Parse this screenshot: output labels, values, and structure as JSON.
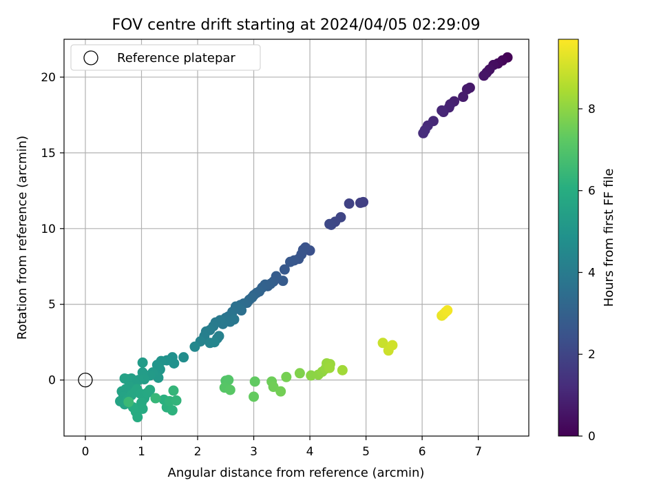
{
  "chart_data": {
    "type": "scatter",
    "title": "FOV centre drift starting at 2024/04/05 02:29:09",
    "xlabel": "Angular distance from reference (arcmin)",
    "ylabel": "Rotation from reference (arcmin)",
    "xlim": [
      -0.38,
      7.9
    ],
    "ylim": [
      -3.7,
      22.5
    ],
    "x_ticks": [
      0,
      1,
      2,
      3,
      4,
      5,
      6,
      7
    ],
    "y_ticks": [
      0,
      5,
      10,
      15,
      20
    ],
    "grid": true,
    "legend": {
      "placement": "upper-left",
      "entries": [
        "Reference platepar"
      ]
    },
    "reference_point": {
      "x": 0,
      "y": 0
    },
    "colorbar": {
      "label": "Hours from first FF file",
      "colormap": "viridis",
      "range": [
        0,
        9.7
      ],
      "ticks": [
        0,
        2,
        4,
        6,
        8
      ]
    },
    "points": [
      {
        "x": 7.52,
        "y": 21.3,
        "c": 0.05
      },
      {
        "x": 7.43,
        "y": 21.1,
        "c": 0.15
      },
      {
        "x": 7.35,
        "y": 20.9,
        "c": 0.25
      },
      {
        "x": 7.27,
        "y": 20.8,
        "c": 0.35
      },
      {
        "x": 7.2,
        "y": 20.5,
        "c": 0.45
      },
      {
        "x": 7.15,
        "y": 20.3,
        "c": 0.5
      },
      {
        "x": 7.1,
        "y": 20.1,
        "c": 0.55
      },
      {
        "x": 6.85,
        "y": 19.3,
        "c": 0.65
      },
      {
        "x": 6.8,
        "y": 19.2,
        "c": 0.7
      },
      {
        "x": 6.73,
        "y": 18.7,
        "c": 0.75
      },
      {
        "x": 6.57,
        "y": 18.4,
        "c": 0.85
      },
      {
        "x": 6.5,
        "y": 18.2,
        "c": 0.9
      },
      {
        "x": 6.48,
        "y": 18.0,
        "c": 0.95
      },
      {
        "x": 6.38,
        "y": 17.7,
        "c": 1.0
      },
      {
        "x": 6.35,
        "y": 17.8,
        "c": 1.05
      },
      {
        "x": 6.2,
        "y": 17.1,
        "c": 1.1
      },
      {
        "x": 6.1,
        "y": 16.8,
        "c": 1.15
      },
      {
        "x": 6.05,
        "y": 16.5,
        "c": 1.2
      },
      {
        "x": 6.02,
        "y": 16.3,
        "c": 1.25
      },
      {
        "x": 4.95,
        "y": 11.75,
        "c": 1.8
      },
      {
        "x": 4.9,
        "y": 11.7,
        "c": 1.85
      },
      {
        "x": 4.7,
        "y": 11.65,
        "c": 1.9
      },
      {
        "x": 4.55,
        "y": 10.75,
        "c": 2.0
      },
      {
        "x": 4.45,
        "y": 10.45,
        "c": 2.05
      },
      {
        "x": 4.38,
        "y": 10.25,
        "c": 2.1
      },
      {
        "x": 4.35,
        "y": 10.3,
        "c": 2.12
      },
      {
        "x": 4.0,
        "y": 8.55,
        "c": 2.4
      },
      {
        "x": 3.92,
        "y": 8.75,
        "c": 2.45
      },
      {
        "x": 3.88,
        "y": 8.6,
        "c": 2.5
      },
      {
        "x": 3.85,
        "y": 8.3,
        "c": 2.52
      },
      {
        "x": 3.8,
        "y": 8.0,
        "c": 2.55
      },
      {
        "x": 3.72,
        "y": 7.9,
        "c": 2.6
      },
      {
        "x": 3.65,
        "y": 7.8,
        "c": 2.65
      },
      {
        "x": 3.55,
        "y": 7.3,
        "c": 2.7
      },
      {
        "x": 3.52,
        "y": 6.55,
        "c": 2.75
      },
      {
        "x": 3.4,
        "y": 6.85,
        "c": 2.8
      },
      {
        "x": 3.35,
        "y": 6.5,
        "c": 2.85
      },
      {
        "x": 3.3,
        "y": 6.35,
        "c": 2.9
      },
      {
        "x": 3.25,
        "y": 6.2,
        "c": 2.95
      },
      {
        "x": 3.2,
        "y": 6.3,
        "c": 3.0
      },
      {
        "x": 3.15,
        "y": 6.1,
        "c": 3.05
      },
      {
        "x": 3.1,
        "y": 5.85,
        "c": 3.1
      },
      {
        "x": 3.05,
        "y": 5.75,
        "c": 3.15
      },
      {
        "x": 3.0,
        "y": 5.6,
        "c": 3.2
      },
      {
        "x": 2.97,
        "y": 5.45,
        "c": 3.25
      },
      {
        "x": 2.92,
        "y": 5.3,
        "c": 3.3
      },
      {
        "x": 2.88,
        "y": 5.1,
        "c": 3.35
      },
      {
        "x": 2.82,
        "y": 5.05,
        "c": 3.4
      },
      {
        "x": 2.76,
        "y": 4.95,
        "c": 3.45
      },
      {
        "x": 2.72,
        "y": 4.8,
        "c": 3.5
      },
      {
        "x": 2.78,
        "y": 4.6,
        "c": 3.55
      },
      {
        "x": 2.68,
        "y": 4.85,
        "c": 3.6
      },
      {
        "x": 2.62,
        "y": 4.5,
        "c": 3.65
      },
      {
        "x": 2.55,
        "y": 4.2,
        "c": 3.7
      },
      {
        "x": 2.6,
        "y": 4.3,
        "c": 3.72
      },
      {
        "x": 2.5,
        "y": 4.1,
        "c": 3.75
      },
      {
        "x": 2.48,
        "y": 3.9,
        "c": 3.8
      },
      {
        "x": 2.58,
        "y": 3.85,
        "c": 3.82
      },
      {
        "x": 2.65,
        "y": 4.0,
        "c": 3.85
      },
      {
        "x": 2.45,
        "y": 3.7,
        "c": 3.88
      },
      {
        "x": 2.4,
        "y": 3.95,
        "c": 3.9
      },
      {
        "x": 2.32,
        "y": 3.8,
        "c": 3.95
      },
      {
        "x": 2.28,
        "y": 3.55,
        "c": 4.0
      },
      {
        "x": 2.22,
        "y": 3.3,
        "c": 4.05
      },
      {
        "x": 2.15,
        "y": 3.2,
        "c": 4.1
      },
      {
        "x": 2.12,
        "y": 2.9,
        "c": 4.15
      },
      {
        "x": 2.35,
        "y": 2.75,
        "c": 4.2
      },
      {
        "x": 2.38,
        "y": 2.9,
        "c": 4.22
      },
      {
        "x": 2.05,
        "y": 2.55,
        "c": 4.3
      },
      {
        "x": 2.22,
        "y": 2.45,
        "c": 4.35
      },
      {
        "x": 2.3,
        "y": 2.5,
        "c": 4.38
      },
      {
        "x": 1.95,
        "y": 2.2,
        "c": 4.5
      },
      {
        "x": 1.75,
        "y": 1.5,
        "c": 4.7
      },
      {
        "x": 1.55,
        "y": 1.5,
        "c": 4.8
      },
      {
        "x": 1.58,
        "y": 1.1,
        "c": 4.85
      },
      {
        "x": 1.45,
        "y": 1.3,
        "c": 4.9
      },
      {
        "x": 1.35,
        "y": 1.25,
        "c": 4.95
      },
      {
        "x": 1.28,
        "y": 1.0,
        "c": 5.0
      },
      {
        "x": 1.33,
        "y": 0.7,
        "c": 5.05
      },
      {
        "x": 1.25,
        "y": 0.4,
        "c": 5.1
      },
      {
        "x": 1.3,
        "y": 0.15,
        "c": 5.15
      },
      {
        "x": 1.2,
        "y": 0.5,
        "c": 5.2
      },
      {
        "x": 1.15,
        "y": 0.3,
        "c": 5.22
      },
      {
        "x": 1.02,
        "y": 1.15,
        "c": 5.25
      },
      {
        "x": 1.02,
        "y": 0.5,
        "c": 5.3
      },
      {
        "x": 1.05,
        "y": 0.05,
        "c": 5.35
      },
      {
        "x": 0.95,
        "y": 0.0,
        "c": 5.4
      },
      {
        "x": 0.88,
        "y": -0.2,
        "c": 5.42
      },
      {
        "x": 0.82,
        "y": 0.1,
        "c": 5.45
      },
      {
        "x": 0.75,
        "y": 0.05,
        "c": 5.48
      },
      {
        "x": 0.7,
        "y": 0.1,
        "c": 5.5
      },
      {
        "x": 0.78,
        "y": -0.4,
        "c": 5.52
      },
      {
        "x": 0.72,
        "y": -0.6,
        "c": 5.55
      },
      {
        "x": 0.65,
        "y": -0.75,
        "c": 5.58
      },
      {
        "x": 0.68,
        "y": -1.1,
        "c": 5.6
      },
      {
        "x": 0.62,
        "y": -1.4,
        "c": 5.62
      },
      {
        "x": 0.7,
        "y": -1.6,
        "c": 5.65
      },
      {
        "x": 0.75,
        "y": -1.3,
        "c": 5.68
      },
      {
        "x": 0.82,
        "y": -1.0,
        "c": 5.7
      },
      {
        "x": 0.88,
        "y": -0.8,
        "c": 5.72
      },
      {
        "x": 0.92,
        "y": -0.6,
        "c": 5.74
      },
      {
        "x": 0.98,
        "y": -0.9,
        "c": 5.76
      },
      {
        "x": 1.05,
        "y": -1.2,
        "c": 5.78
      },
      {
        "x": 1.1,
        "y": -0.85,
        "c": 5.8
      },
      {
        "x": 1.15,
        "y": -0.65,
        "c": 5.82
      },
      {
        "x": 1.0,
        "y": -1.5,
        "c": 5.85
      },
      {
        "x": 1.02,
        "y": -1.9,
        "c": 5.9
      },
      {
        "x": 0.9,
        "y": -2.1,
        "c": 5.92
      },
      {
        "x": 0.93,
        "y": -2.45,
        "c": 5.95
      },
      {
        "x": 0.85,
        "y": -1.8,
        "c": 5.97
      },
      {
        "x": 1.4,
        "y": -1.3,
        "c": 6.1
      },
      {
        "x": 1.45,
        "y": -1.8,
        "c": 6.15
      },
      {
        "x": 1.55,
        "y": -2.0,
        "c": 6.2
      },
      {
        "x": 1.5,
        "y": -1.4,
        "c": 6.25
      },
      {
        "x": 1.62,
        "y": -1.35,
        "c": 6.3
      },
      {
        "x": 1.57,
        "y": -0.7,
        "c": 6.35
      },
      {
        "x": 1.25,
        "y": -1.2,
        "c": 6.4
      },
      {
        "x": 0.77,
        "y": -1.45,
        "c": 6.5
      },
      {
        "x": 2.5,
        "y": -0.05,
        "c": 7.0
      },
      {
        "x": 2.55,
        "y": 0.0,
        "c": 7.05
      },
      {
        "x": 2.48,
        "y": -0.5,
        "c": 7.1
      },
      {
        "x": 2.58,
        "y": -0.65,
        "c": 7.15
      },
      {
        "x": 3.02,
        "y": -0.1,
        "c": 7.3
      },
      {
        "x": 3.0,
        "y": -1.1,
        "c": 7.35
      },
      {
        "x": 3.32,
        "y": -0.1,
        "c": 7.5
      },
      {
        "x": 3.35,
        "y": -0.45,
        "c": 7.55
      },
      {
        "x": 3.48,
        "y": -0.75,
        "c": 7.6
      },
      {
        "x": 3.58,
        "y": 0.2,
        "c": 7.65
      },
      {
        "x": 3.82,
        "y": 0.45,
        "c": 7.8
      },
      {
        "x": 4.02,
        "y": 0.3,
        "c": 7.95
      },
      {
        "x": 4.15,
        "y": 0.35,
        "c": 8.0
      },
      {
        "x": 4.22,
        "y": 0.55,
        "c": 8.05
      },
      {
        "x": 4.28,
        "y": 0.75,
        "c": 8.1
      },
      {
        "x": 4.3,
        "y": 1.1,
        "c": 8.15
      },
      {
        "x": 4.36,
        "y": 1.05,
        "c": 8.2
      },
      {
        "x": 4.35,
        "y": 0.8,
        "c": 8.22
      },
      {
        "x": 4.58,
        "y": 0.65,
        "c": 8.3
      },
      {
        "x": 5.3,
        "y": 2.45,
        "c": 8.9
      },
      {
        "x": 5.4,
        "y": 1.95,
        "c": 8.95
      },
      {
        "x": 5.47,
        "y": 2.3,
        "c": 9.0
      },
      {
        "x": 6.35,
        "y": 4.25,
        "c": 9.4
      },
      {
        "x": 6.38,
        "y": 4.35,
        "c": 9.45
      },
      {
        "x": 6.42,
        "y": 4.5,
        "c": 9.5
      },
      {
        "x": 6.45,
        "y": 4.6,
        "c": 9.55
      }
    ]
  }
}
